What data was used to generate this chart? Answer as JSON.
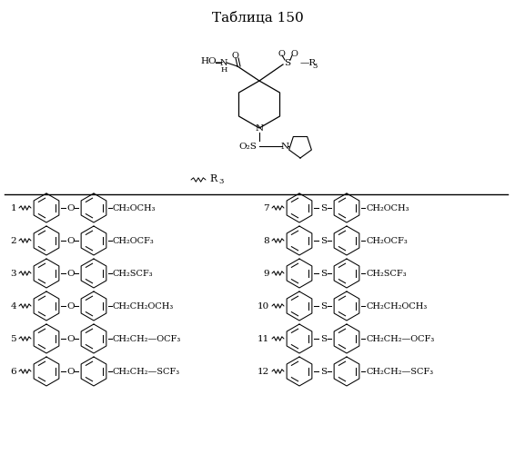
{
  "title": "Таблица 150",
  "background_color": "#ffffff",
  "line_color": "#000000",
  "text_color": "#000000",
  "fig_width": 5.66,
  "fig_height": 5.0,
  "dpi": 100,
  "left_entries": [
    {
      "num": "1",
      "label": "CH₂OCH₃"
    },
    {
      "num": "2",
      "label": "CH₂OCF₃"
    },
    {
      "num": "3",
      "label": "CH₂SCF₃"
    },
    {
      "num": "4",
      "label": "CH₂CH₂OCH₃"
    },
    {
      "num": "5",
      "label": "CH₂CH₂—OCF₃"
    },
    {
      "num": "6",
      "label": "CH₂CH₂—SCF₃"
    }
  ],
  "right_entries": [
    {
      "num": "7",
      "label": "CH₂OCH₃"
    },
    {
      "num": "8",
      "label": "CH₂OCF₃"
    },
    {
      "num": "9",
      "label": "CH₂SCF₃"
    },
    {
      "num": "10",
      "label": "CH₂CH₂OCH₃"
    },
    {
      "num": "11",
      "label": "CH₂CH₂—OCF₃"
    },
    {
      "num": "12",
      "label": "CH₂CH₂—SCF₃"
    }
  ],
  "left_connector": "O",
  "right_connector": "S"
}
